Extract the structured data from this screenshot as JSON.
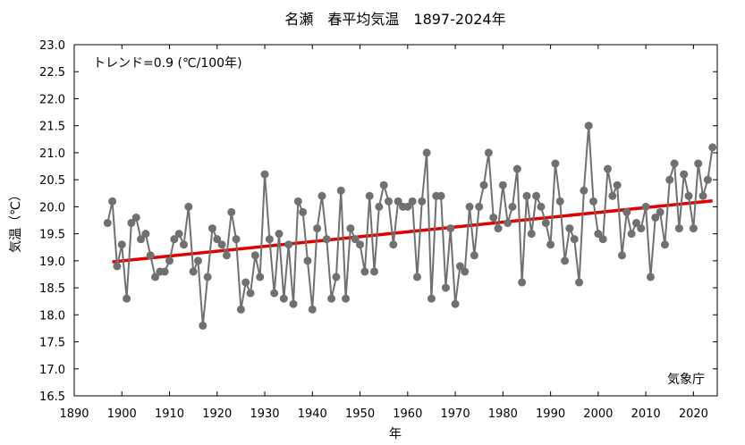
{
  "chart_data": {
    "type": "line",
    "title": "名瀬　春平均気温　1897-2024年",
    "xlabel": "年",
    "ylabel": "気温（℃）",
    "trend_text": "トレンド=0.9 (℃/100年)",
    "source_text": "気象庁",
    "xlim": [
      1890,
      2025
    ],
    "ylim": [
      16.5,
      23.0
    ],
    "x_ticks": [
      1890,
      1900,
      1910,
      1920,
      1930,
      1940,
      1950,
      1960,
      1970,
      1980,
      1990,
      2000,
      2010,
      2020
    ],
    "y_ticks": [
      "16.5",
      "17.0",
      "17.5",
      "18.0",
      "18.5",
      "19.0",
      "19.5",
      "20.0",
      "20.5",
      "21.0",
      "21.5",
      "22.0",
      "22.5",
      "23.0"
    ],
    "grid": false,
    "series": [
      {
        "name": "",
        "color": "#707070",
        "x": [
          1897,
          1898,
          1899,
          1900,
          1901,
          1902,
          1903,
          1904,
          1905,
          1906,
          1907,
          1908,
          1909,
          1910,
          1911,
          1912,
          1913,
          1914,
          1915,
          1916,
          1917,
          1918,
          1919,
          1920,
          1921,
          1922,
          1923,
          1924,
          1925,
          1926,
          1927,
          1928,
          1929,
          1930,
          1931,
          1932,
          1933,
          1934,
          1935,
          1936,
          1937,
          1938,
          1939,
          1940,
          1941,
          1942,
          1943,
          1944,
          1945,
          1946,
          1947,
          1948,
          1949,
          1950,
          1951,
          1952,
          1953,
          1954,
          1955,
          1956,
          1957,
          1958,
          1959,
          1960,
          1961,
          1962,
          1963,
          1964,
          1965,
          1966,
          1967,
          1968,
          1969,
          1970,
          1971,
          1972,
          1973,
          1974,
          1975,
          1976,
          1977,
          1978,
          1979,
          1980,
          1981,
          1982,
          1983,
          1984,
          1985,
          1986,
          1987,
          1988,
          1989,
          1990,
          1991,
          1992,
          1993,
          1994,
          1995,
          1996,
          1997,
          1998,
          1999,
          2000,
          2001,
          2002,
          2003,
          2004,
          2005,
          2006,
          2007,
          2008,
          2009,
          2010,
          2011,
          2012,
          2013,
          2014,
          2015,
          2016,
          2017,
          2018,
          2019,
          2020,
          2021,
          2022,
          2023,
          2024
        ],
        "values": [
          19.7,
          20.1,
          18.9,
          19.3,
          18.3,
          19.7,
          19.8,
          19.4,
          19.5,
          19.1,
          18.7,
          18.8,
          18.8,
          19.0,
          19.4,
          19.5,
          19.3,
          20.0,
          18.8,
          19.0,
          17.8,
          18.7,
          19.6,
          19.4,
          19.3,
          19.1,
          19.9,
          19.4,
          18.1,
          18.6,
          18.4,
          19.1,
          18.7,
          20.6,
          19.4,
          18.4,
          19.5,
          18.3,
          19.3,
          18.2,
          20.1,
          19.9,
          19.0,
          18.1,
          19.6,
          20.2,
          19.4,
          18.3,
          18.7,
          20.3,
          18.3,
          19.6,
          19.4,
          19.3,
          18.8,
          20.2,
          18.8,
          20.0,
          20.4,
          20.1,
          19.3,
          20.1,
          20.0,
          20.0,
          20.1,
          18.7,
          20.1,
          21.0,
          18.3,
          20.2,
          20.2,
          18.5,
          19.6,
          18.2,
          18.9,
          18.8,
          20.0,
          19.1,
          20.0,
          20.4,
          21.0,
          19.8,
          19.6,
          20.4,
          19.7,
          20.0,
          20.7,
          18.6,
          20.2,
          19.5,
          20.2,
          20.0,
          19.7,
          19.3,
          20.8,
          20.1,
          19.0,
          19.6,
          19.4,
          18.6,
          20.3,
          21.5,
          20.1,
          19.5,
          19.4,
          20.7,
          20.2,
          20.4,
          19.1,
          19.9,
          19.5,
          19.7,
          19.6,
          20.0,
          18.7,
          19.8,
          19.9,
          19.3,
          20.5,
          20.8,
          19.6,
          20.6,
          20.2,
          19.6,
          20.8,
          20.2,
          20.5,
          21.1
        ]
      }
    ],
    "trend_line": {
      "color": "#e00000",
      "x": [
        1898,
        2024
      ],
      "y": [
        18.98,
        20.11
      ]
    }
  }
}
